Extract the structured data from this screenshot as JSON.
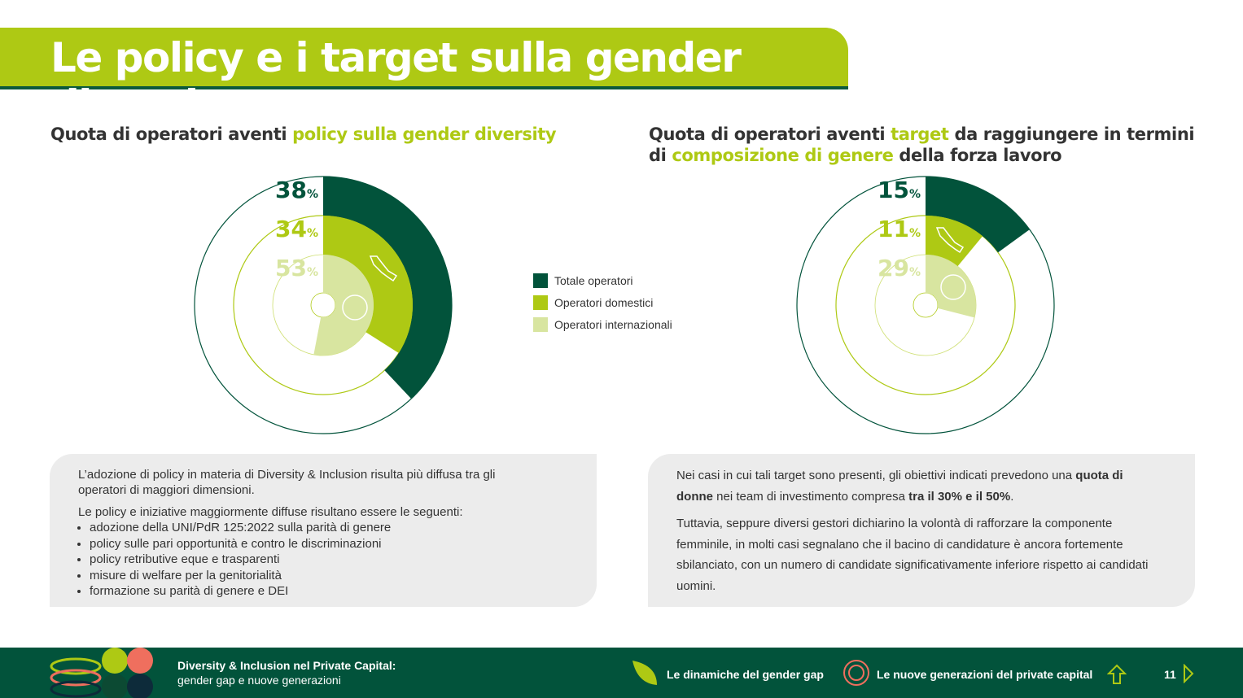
{
  "title": "Le policy e i target sulla gender diversity",
  "left": {
    "heading_a": "Quota di operatori aventi ",
    "heading_hl": "policy sulla gender diversity",
    "box": {
      "p1": "L’adozione di policy in materia di Diversity & Inclusion risulta più diffusa tra gli operatori di maggiori dimensioni.",
      "p2": "Le policy e iniziative maggiormente diffuse risultano essere le seguenti:",
      "bullets": [
        "adozione della UNI/PdR 125:2022 sulla parità di genere",
        "policy sulle pari opportunità e contro le discriminazioni",
        "policy retributive eque e trasparenti",
        "misure di welfare per la genitorialità",
        "formazione su parità di genere e DEI"
      ]
    }
  },
  "right": {
    "heading_a": "Quota di operatori aventi ",
    "heading_hl1": "target",
    "heading_b": " da raggiungere in termini di ",
    "heading_hl2": "composizione di genere",
    "heading_c": " della forza lavoro",
    "box": {
      "p1a": "Nei casi in cui tali target sono presenti, gli obiettivi indicati prevedono una ",
      "p1b": "quota di donne",
      "p1c": " nei team di investimento compresa ",
      "p1d": "tra il 30% e il 50%",
      "p1e": ".",
      "p2": "Tuttavia, seppure diversi gestori dichiarino la volontà di rafforzare la componente femminile, in molti casi segnalano che il bacino di candidature è ancora fortemente sbilanciato, con un numero di candidate significativamente inferiore rispetto ai candidati uomini."
    }
  },
  "legend": [
    "Totale operatori",
    "Operatori domestici",
    "Operatori internazionali"
  ],
  "colors": {
    "dark": "#02533b",
    "lime": "#aec914",
    "light": "#d8e5a0"
  },
  "chart_data": [
    {
      "type": "pie",
      "title": "Quota di operatori aventi policy sulla gender diversity",
      "series": [
        {
          "name": "Totale operatori",
          "value": 38
        },
        {
          "name": "Operatori domestici",
          "value": 34
        },
        {
          "name": "Operatori internazionali",
          "value": 53
        }
      ],
      "labels": [
        "38",
        "34",
        "53"
      ],
      "unit": "%"
    },
    {
      "type": "pie",
      "title": "Quota di operatori aventi target da raggiungere in termini di composizione di genere della forza lavoro",
      "series": [
        {
          "name": "Totale operatori",
          "value": 15
        },
        {
          "name": "Operatori domestici",
          "value": 11
        },
        {
          "name": "Operatori internazionali",
          "value": 29
        }
      ],
      "labels": [
        "15",
        "11",
        "29"
      ],
      "unit": "%"
    }
  ],
  "footer": {
    "title1": "Diversity & Inclusion nel Private Capital:",
    "title2": "gender gap e nuove generazioni",
    "nav1": "Le dinamiche del gender gap",
    "nav2": "Le nuove generazioni del private capital",
    "page": "11"
  }
}
